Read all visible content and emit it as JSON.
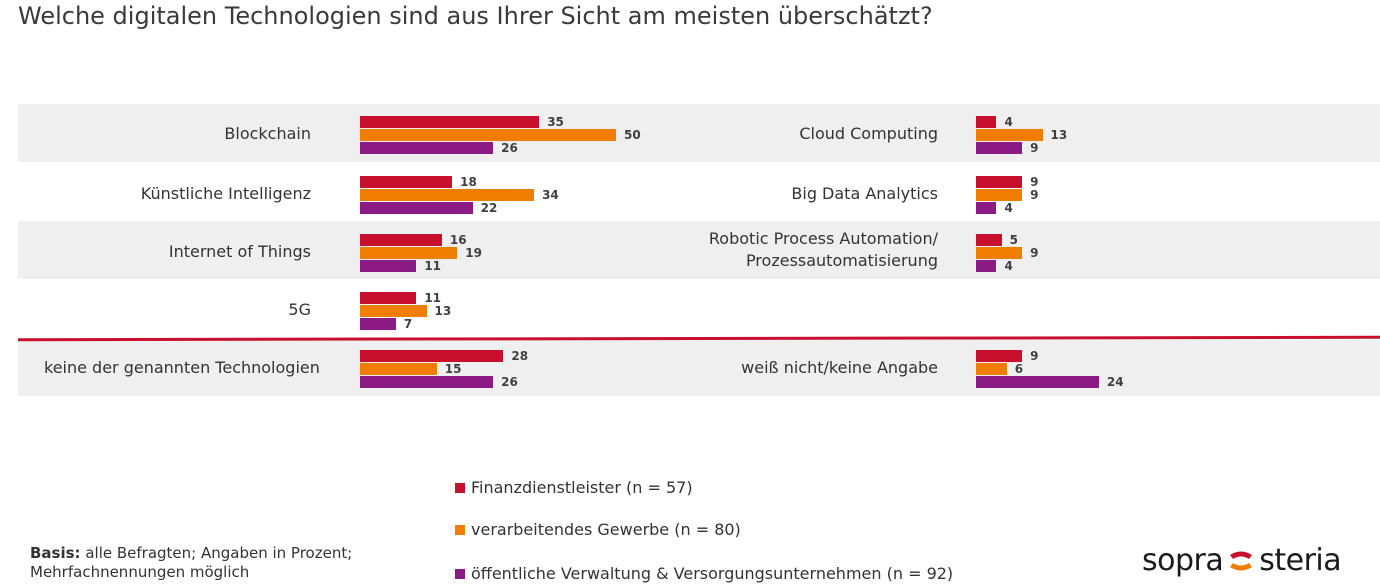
{
  "title": "Welche digitalen Technologien sind aus Ihrer Sicht am meisten überschätzt?",
  "colors": {
    "finanz": "#c8102e",
    "gewerbe": "#f07d00",
    "oeffentlich": "#8b1a84",
    "band": "#efefef",
    "divider": "#c8102e"
  },
  "chart_data": {
    "type": "bar",
    "orientation": "horizontal",
    "unit": "Prozent",
    "series": [
      {
        "name": "Finanzdienstleister (n = 57)"
      },
      {
        "name": "verarbeitendes Gewerbe (n = 80)"
      },
      {
        "name": "öffentliche Verwaltung & Versorgungsunternehmen (n = 92)"
      }
    ],
    "left_panel": [
      {
        "category": "Blockchain",
        "values": [
          35,
          50,
          26
        ]
      },
      {
        "category": "Künstliche Intelligenz",
        "values": [
          18,
          34,
          22
        ]
      },
      {
        "category": "Internet of Things",
        "values": [
          16,
          19,
          11
        ]
      },
      {
        "category": "5G",
        "values": [
          11,
          13,
          7
        ]
      },
      {
        "category": "keine der genannten Technologien",
        "values": [
          28,
          15,
          26
        ]
      }
    ],
    "right_panel": [
      {
        "category": "Cloud Computing",
        "values": [
          4,
          13,
          9
        ]
      },
      {
        "category": "Big Data Analytics",
        "values": [
          9,
          9,
          4
        ]
      },
      {
        "category": "Robotic Process Automation/ Prozessautomatisierung",
        "values": [
          5,
          9,
          4
        ]
      },
      {
        "category": "weiß nicht/keine Angabe",
        "values": [
          9,
          6,
          24
        ]
      }
    ]
  },
  "legend": [
    {
      "label": "Finanzdienstleister (n = 57)",
      "color": "#c8102e"
    },
    {
      "label": "verarbeitendes Gewerbe (n = 80)",
      "color": "#f07d00"
    },
    {
      "label": "öffentliche Verwaltung & Versorgungsunternehmen (n = 92)",
      "color": "#8b1a84"
    }
  ],
  "basis": {
    "bold": "Basis:",
    "text": " alle Befragten; Angaben in Prozent;",
    "line2": "Mehrfachnennungen möglich"
  },
  "logo": {
    "left": "sopra",
    "right": "steria"
  }
}
